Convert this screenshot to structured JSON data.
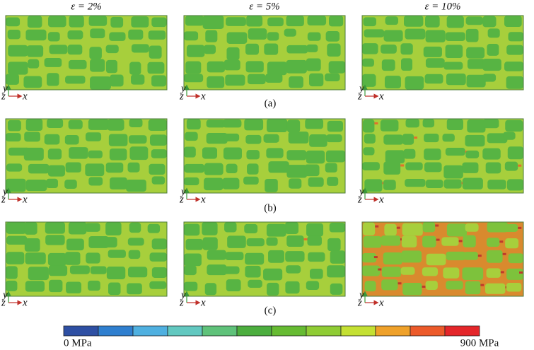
{
  "column_headers": [
    "ε = 2%",
    "ε = 5%",
    "ε = 10%"
  ],
  "row_labels": [
    "(a)",
    "(b)",
    "(c)"
  ],
  "axis_triad": {
    "y": "y",
    "z": "z",
    "x": "x"
  },
  "colorbar": {
    "min_label": "0 MPa",
    "max_label": "900 MPa"
  }
}
